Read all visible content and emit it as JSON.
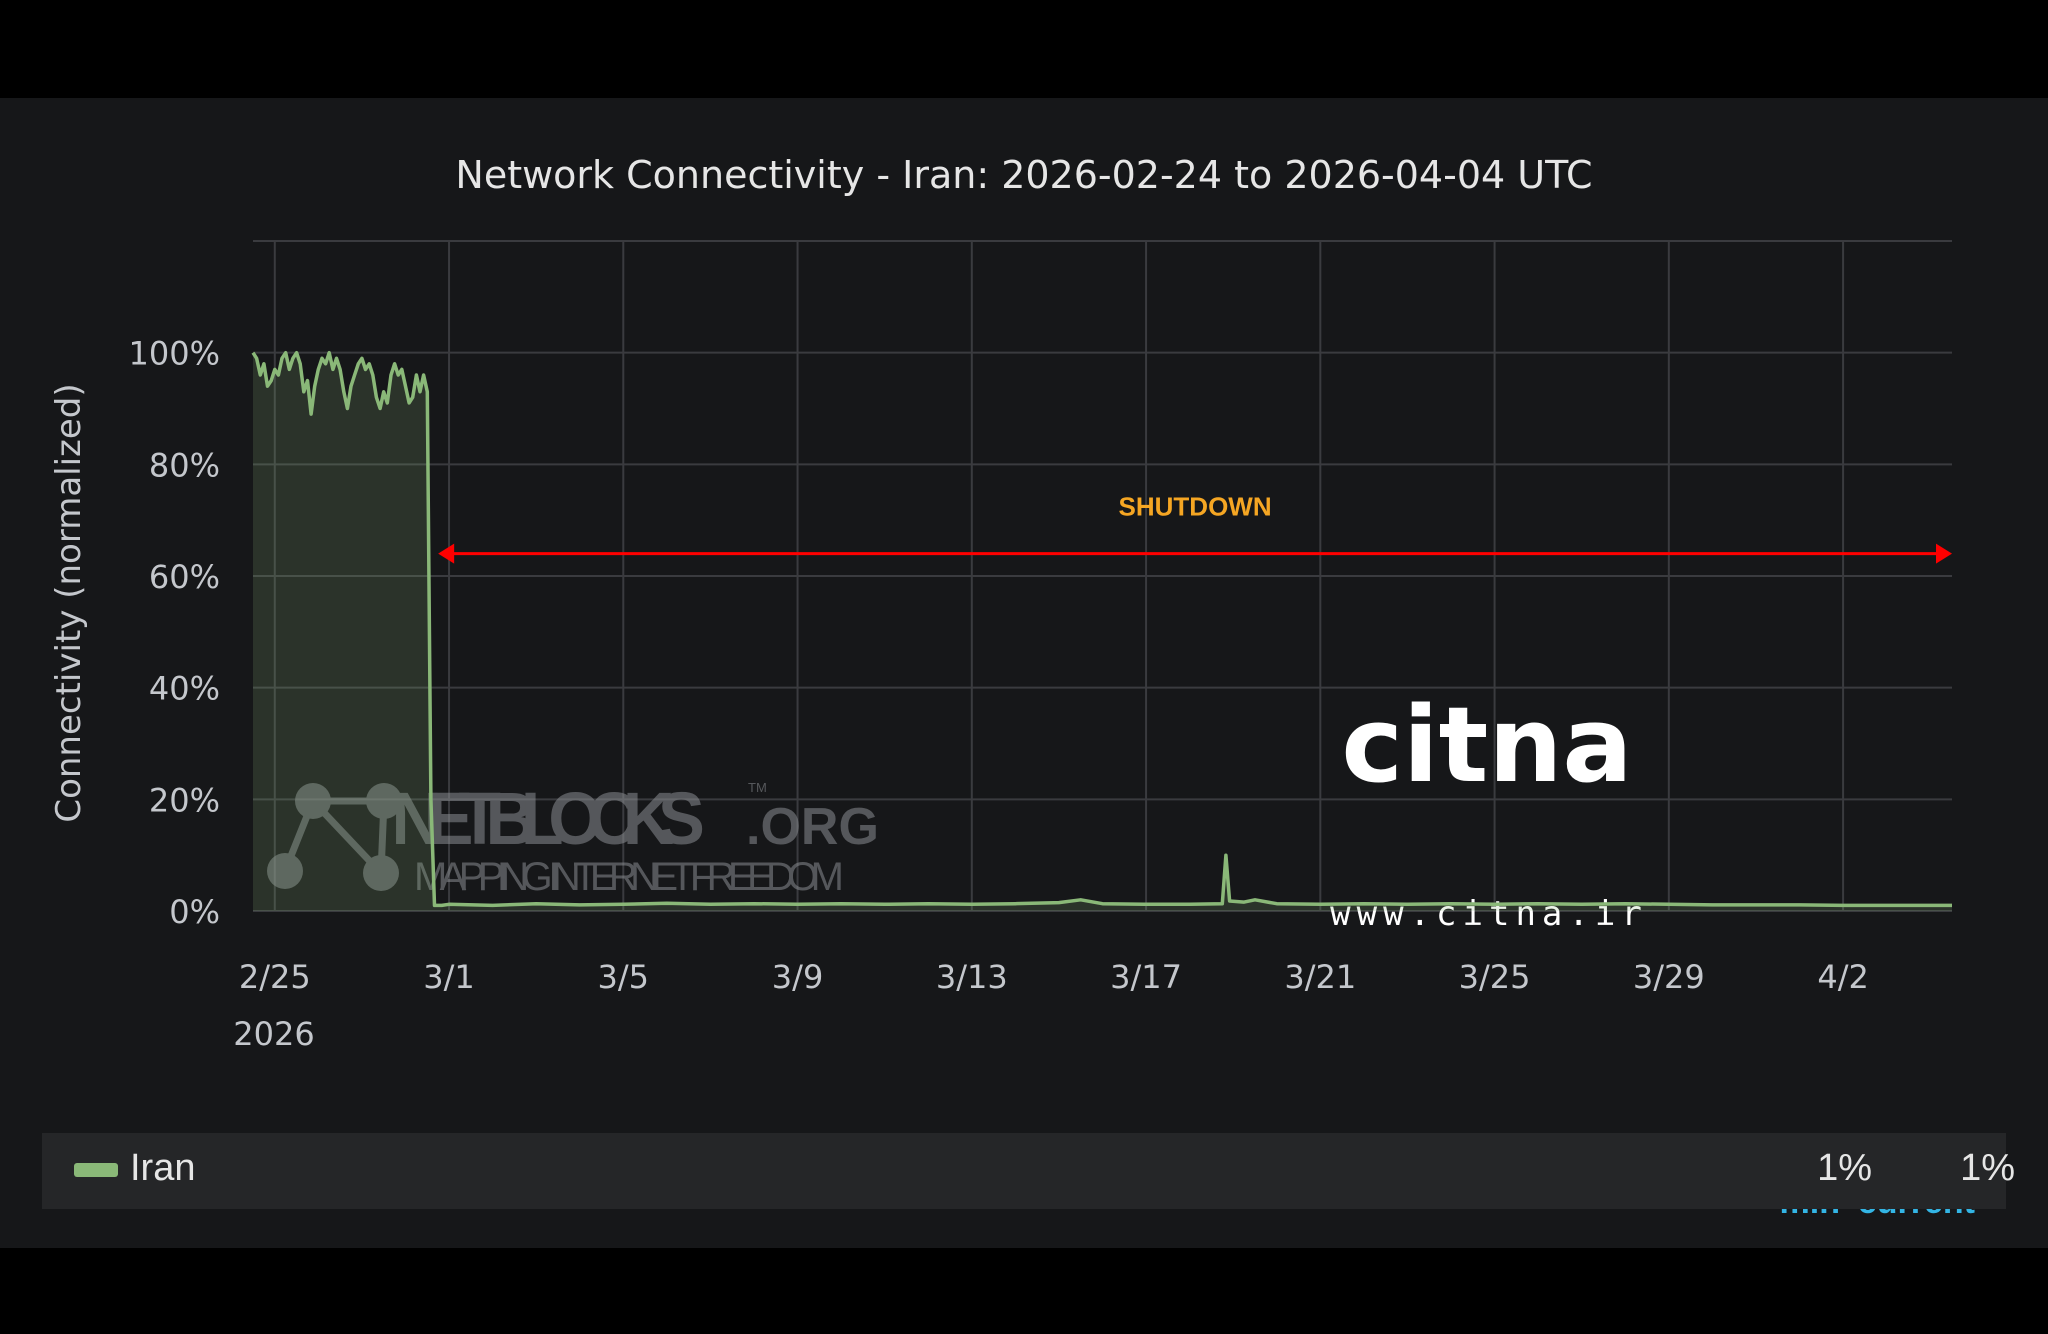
{
  "chart_data": {
    "type": "line",
    "title": "Network Connectivity - Iran: 2026-02-24 to 2026-04-04 UTC",
    "ylabel": "Connectivity (normalized)",
    "xlabel": "",
    "ylim": [
      0,
      120
    ],
    "y_ticks": [
      "0%",
      "20%",
      "40%",
      "60%",
      "80%",
      "100%"
    ],
    "y_tick_values": [
      0,
      20,
      40,
      60,
      80,
      100
    ],
    "x_ticks": [
      "2/25",
      "3/1",
      "3/5",
      "3/9",
      "3/13",
      "3/17",
      "3/21",
      "3/25",
      "3/29",
      "4/2"
    ],
    "x_tick_values": [
      "2026-02-25",
      "2026-03-01",
      "2026-03-05",
      "2026-03-09",
      "2026-03-13",
      "2026-03-17",
      "2026-03-21",
      "2026-03-25",
      "2026-03-29",
      "2026-04-02"
    ],
    "x_year_label": "2026",
    "xlim": [
      "2026-02-24T12:00",
      "2026-04-04T12:00"
    ],
    "grid": true,
    "series": [
      {
        "name": "Iran",
        "color": "#8ab878",
        "points": [
          [
            "2026-02-24T12:00",
            100
          ],
          [
            "2026-02-24T14:00",
            99
          ],
          [
            "2026-02-24T16:00",
            96
          ],
          [
            "2026-02-24T18:00",
            98
          ],
          [
            "2026-02-24T20:00",
            94
          ],
          [
            "2026-02-24T22:00",
            95
          ],
          [
            "2026-02-25T00:00",
            97
          ],
          [
            "2026-02-25T02:00",
            96
          ],
          [
            "2026-02-25T04:00",
            99
          ],
          [
            "2026-02-25T06:00",
            100
          ],
          [
            "2026-02-25T08:00",
            97
          ],
          [
            "2026-02-25T10:00",
            99
          ],
          [
            "2026-02-25T12:00",
            100
          ],
          [
            "2026-02-25T14:00",
            98
          ],
          [
            "2026-02-25T16:00",
            93
          ],
          [
            "2026-02-25T18:00",
            95
          ],
          [
            "2026-02-25T20:00",
            89
          ],
          [
            "2026-02-25T22:00",
            94
          ],
          [
            "2026-02-26T00:00",
            97
          ],
          [
            "2026-02-26T02:00",
            99
          ],
          [
            "2026-02-26T04:00",
            98
          ],
          [
            "2026-02-26T06:00",
            100
          ],
          [
            "2026-02-26T08:00",
            97
          ],
          [
            "2026-02-26T10:00",
            99
          ],
          [
            "2026-02-26T12:00",
            97
          ],
          [
            "2026-02-26T14:00",
            93
          ],
          [
            "2026-02-26T16:00",
            90
          ],
          [
            "2026-02-26T18:00",
            94
          ],
          [
            "2026-02-26T20:00",
            96
          ],
          [
            "2026-02-26T22:00",
            98
          ],
          [
            "2026-02-27T00:00",
            99
          ],
          [
            "2026-02-27T02:00",
            97
          ],
          [
            "2026-02-27T04:00",
            98
          ],
          [
            "2026-02-27T06:00",
            96
          ],
          [
            "2026-02-27T08:00",
            92
          ],
          [
            "2026-02-27T10:00",
            90
          ],
          [
            "2026-02-27T12:00",
            93
          ],
          [
            "2026-02-27T14:00",
            91
          ],
          [
            "2026-02-27T16:00",
            96
          ],
          [
            "2026-02-27T18:00",
            98
          ],
          [
            "2026-02-27T20:00",
            96
          ],
          [
            "2026-02-27T22:00",
            97
          ],
          [
            "2026-02-28T00:00",
            94
          ],
          [
            "2026-02-28T02:00",
            91
          ],
          [
            "2026-02-28T04:00",
            92
          ],
          [
            "2026-02-28T06:00",
            96
          ],
          [
            "2026-02-28T08:00",
            93
          ],
          [
            "2026-02-28T10:00",
            96
          ],
          [
            "2026-02-28T12:00",
            93
          ],
          [
            "2026-02-28T14:00",
            20
          ],
          [
            "2026-02-28T16:00",
            1
          ],
          [
            "2026-02-28T20:00",
            1
          ],
          [
            "2026-03-01T00:00",
            1.2
          ],
          [
            "2026-03-02T00:00",
            1.0
          ],
          [
            "2026-03-03T00:00",
            1.3
          ],
          [
            "2026-03-04T00:00",
            1.1
          ],
          [
            "2026-03-05T00:00",
            1.2
          ],
          [
            "2026-03-06T00:00",
            1.4
          ],
          [
            "2026-03-07T00:00",
            1.2
          ],
          [
            "2026-03-08T00:00",
            1.3
          ],
          [
            "2026-03-09T00:00",
            1.2
          ],
          [
            "2026-03-10T00:00",
            1.3
          ],
          [
            "2026-03-11T00:00",
            1.2
          ],
          [
            "2026-03-12T00:00",
            1.3
          ],
          [
            "2026-03-13T00:00",
            1.2
          ],
          [
            "2026-03-14T00:00",
            1.3
          ],
          [
            "2026-03-15T00:00",
            1.5
          ],
          [
            "2026-03-15T12:00",
            2.0
          ],
          [
            "2026-03-16T00:00",
            1.3
          ],
          [
            "2026-03-17T00:00",
            1.2
          ],
          [
            "2026-03-18T00:00",
            1.2
          ],
          [
            "2026-03-18T18:00",
            1.3
          ],
          [
            "2026-03-18T20:00",
            10
          ],
          [
            "2026-03-18T22:00",
            1.8
          ],
          [
            "2026-03-19T06:00",
            1.6
          ],
          [
            "2026-03-19T12:00",
            2.0
          ],
          [
            "2026-03-20T00:00",
            1.3
          ],
          [
            "2026-03-21T00:00",
            1.2
          ],
          [
            "2026-03-22T00:00",
            1.3
          ],
          [
            "2026-03-23T00:00",
            1.2
          ],
          [
            "2026-03-24T00:00",
            1.3
          ],
          [
            "2026-03-25T00:00",
            1.2
          ],
          [
            "2026-03-26T00:00",
            1.3
          ],
          [
            "2026-03-27T00:00",
            1.2
          ],
          [
            "2026-03-28T00:00",
            1.3
          ],
          [
            "2026-03-29T00:00",
            1.2
          ],
          [
            "2026-03-30T00:00",
            1.1
          ],
          [
            "2026-03-31T00:00",
            1.1
          ],
          [
            "2026-04-01T00:00",
            1.1
          ],
          [
            "2026-04-02T00:00",
            1.0
          ],
          [
            "2026-04-03T00:00",
            1.0
          ],
          [
            "2026-04-04T00:00",
            1.0
          ],
          [
            "2026-04-04T12:00",
            1.0
          ]
        ]
      }
    ],
    "annotations": [
      {
        "text": "SHUTDOWN",
        "color": "#f5a623",
        "arrow_color": "#ff0000",
        "from": "2026-02-28T18:00",
        "to": "2026-04-04T12:00",
        "y": 64
      }
    ]
  },
  "watermarks": {
    "netblocks": {
      "name": "NETBLOCKS",
      "tld": ".ORG",
      "tm": "TM",
      "tagline": "MAPPING INTERNET FREEDOM"
    },
    "citna": {
      "name": "citna",
      "url": "www.citna.ir"
    }
  },
  "legend": {
    "headers": {
      "min": "min",
      "current": "current"
    },
    "header_color": "#33b5e5",
    "rows": [
      {
        "name": "Iran",
        "min": "1%",
        "current": "1%",
        "color": "#8ab878"
      }
    ]
  }
}
